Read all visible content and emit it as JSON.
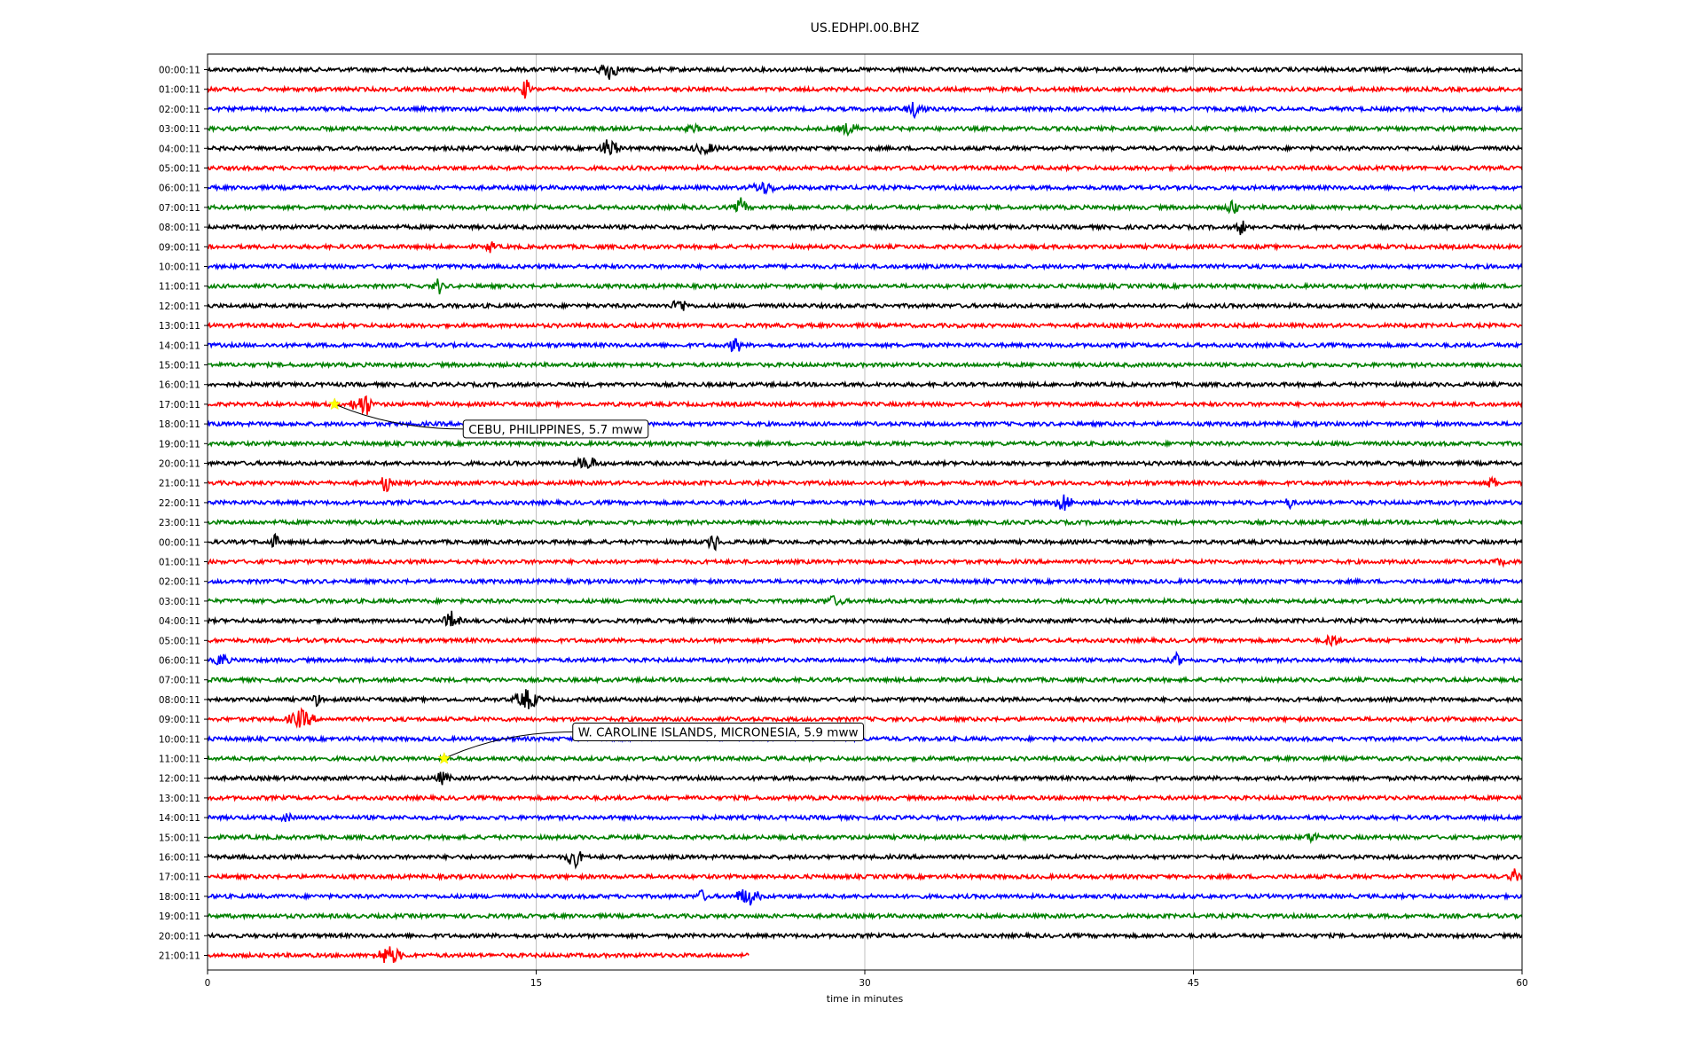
{
  "chart_data": {
    "type": "line",
    "title": "US.EDHPI.00.BHZ",
    "xlabel": "time in minutes",
    "ylabel": "",
    "xlim": [
      0,
      60
    ],
    "x_ticks": [
      "0",
      "15",
      "30",
      "45",
      "60"
    ],
    "x_tick_values": [
      0,
      15,
      30,
      45,
      60
    ],
    "grid": "vertical",
    "colors": [
      "#000000",
      "#ff0000",
      "#0000ff",
      "#008000"
    ],
    "row_labels": [
      "00:00:11",
      "01:00:11",
      "02:00:11",
      "03:00:11",
      "04:00:11",
      "05:00:11",
      "06:00:11",
      "07:00:11",
      "08:00:11",
      "09:00:11",
      "10:00:11",
      "11:00:11",
      "12:00:11",
      "13:00:11",
      "14:00:11",
      "15:00:11",
      "16:00:11",
      "17:00:11",
      "18:00:11",
      "19:00:11",
      "20:00:11",
      "21:00:11",
      "22:00:11",
      "23:00:11",
      "00:00:11",
      "01:00:11",
      "02:00:11",
      "03:00:11",
      "04:00:11",
      "05:00:11",
      "06:00:11",
      "07:00:11",
      "08:00:11",
      "09:00:11",
      "10:00:11",
      "11:00:11",
      "12:00:11",
      "13:00:11",
      "14:00:11",
      "15:00:11",
      "16:00:11",
      "17:00:11",
      "18:00:11",
      "19:00:11",
      "20:00:11",
      "21:00:11"
    ],
    "last_row_end_minute": 24.7,
    "events": [
      {
        "name": "CEBU, PHILIPPINES, 5.7 mww",
        "row": 17,
        "minute": 5.8
      },
      {
        "name": "W. CAROLINE ISLANDS, MICRONESIA, 5.9 mww",
        "row": 35,
        "minute": 10.8
      }
    ]
  }
}
